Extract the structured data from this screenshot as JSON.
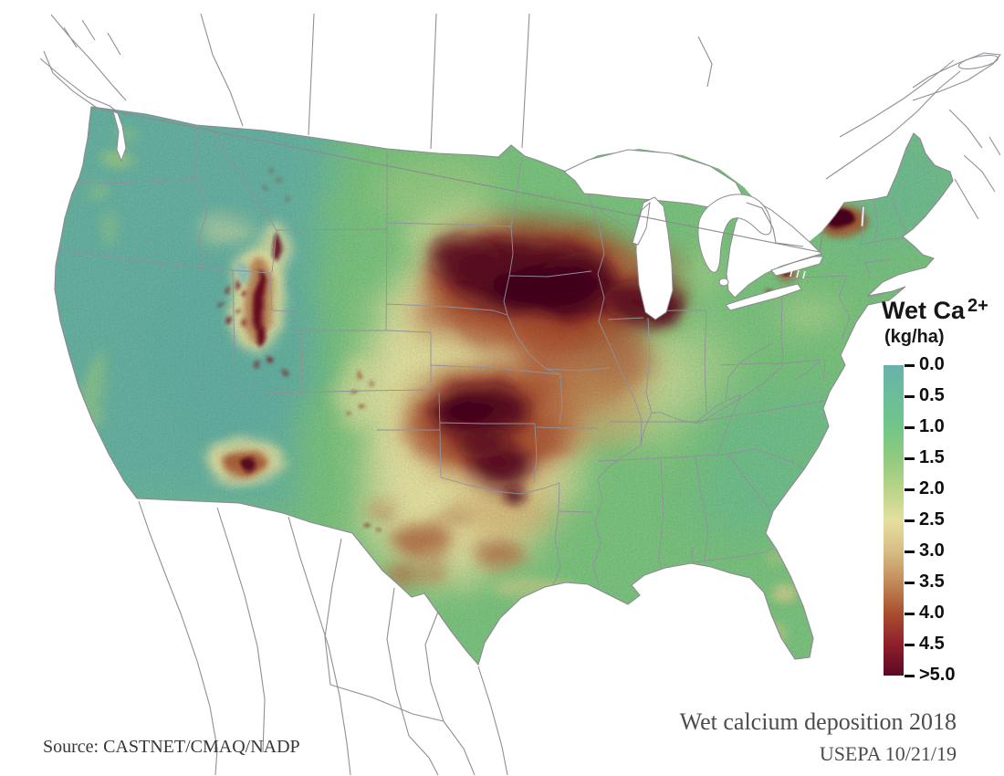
{
  "legend": {
    "title": "Wet Ca",
    "title_sup": "2+",
    "units": "(kg/ha)",
    "colorbar": {
      "tick_labels": [
        "0.0",
        "0.5",
        "1.0",
        "1.5",
        "2.0",
        "2.5",
        "3.0",
        "3.5",
        "4.0",
        "4.5",
        ">5.0"
      ],
      "gradient_stops": [
        "#6ab1ac",
        "#6bbd9a",
        "#72c588",
        "#90cb7e",
        "#b9d488",
        "#e4e0a0",
        "#d7bd85",
        "#c18a58",
        "#a94e30",
        "#8f1f2b",
        "#5a0a23"
      ]
    }
  },
  "annotations": {
    "caption": "Wet calcium deposition 2018",
    "credit": "USEPA 10/21/19",
    "source": "Source: CASTNET/CMAQ/NADP"
  },
  "map": {
    "palette": {
      "land_base": "#7cc47f",
      "west_teal": "#68b2a5",
      "plains_cream": "#e7e2a3",
      "hotspot_dark": "#5b0a23",
      "hotspot_red": "#a84a2c",
      "hotspot_brown": "#b4744a",
      "water_background": "#ffffff",
      "boundary_line": "#90909b"
    }
  }
}
